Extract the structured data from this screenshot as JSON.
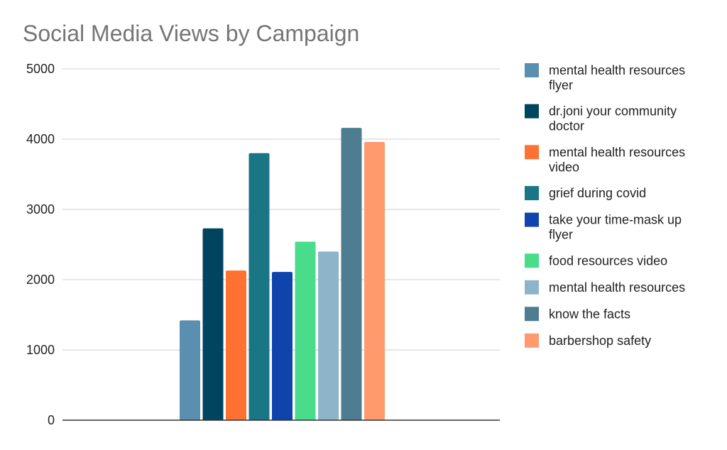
{
  "chart_data": {
    "type": "bar",
    "title": "Social Media Views  by Campaign",
    "xlabel": "",
    "ylabel": "",
    "ylim": [
      0,
      5000
    ],
    "yticks": [
      0,
      1000,
      2000,
      3000,
      4000,
      5000
    ],
    "grid": true,
    "legend_position": "right",
    "series": [
      {
        "name": "mental health resources flyer",
        "legend_lines": [
          "mental health resources",
          "flyer"
        ],
        "value": 1420,
        "color": "#5b8fb0"
      },
      {
        "name": "dr.joni your community doctor",
        "legend_lines": [
          "dr.joni your community",
          "doctor"
        ],
        "value": 2730,
        "color": "#00445f"
      },
      {
        "name": "mental health resources video",
        "legend_lines": [
          "mental health resources",
          "video"
        ],
        "value": 2130,
        "color": "#ff7131"
      },
      {
        "name": "grief during covid",
        "legend_lines": [
          "grief during covid"
        ],
        "value": 3800,
        "color": "#1a7585"
      },
      {
        "name": "take your time-mask up flyer",
        "legend_lines": [
          "take your time-mask up",
          "flyer"
        ],
        "value": 2110,
        "color": "#1044ad"
      },
      {
        "name": "food resources video",
        "legend_lines": [
          "food resources video"
        ],
        "value": 2540,
        "color": "#48dc8b"
      },
      {
        "name": "mental health resources",
        "legend_lines": [
          "mental health resources"
        ],
        "value": 2400,
        "color": "#8eb4ca"
      },
      {
        "name": "know the facts",
        "legend_lines": [
          "know the facts"
        ],
        "value": 4160,
        "color": "#4e7c91"
      },
      {
        "name": "barbershop safety",
        "legend_lines": [
          "barbershop safety"
        ],
        "value": 3960,
        "color": "#ff9a6d"
      }
    ]
  }
}
